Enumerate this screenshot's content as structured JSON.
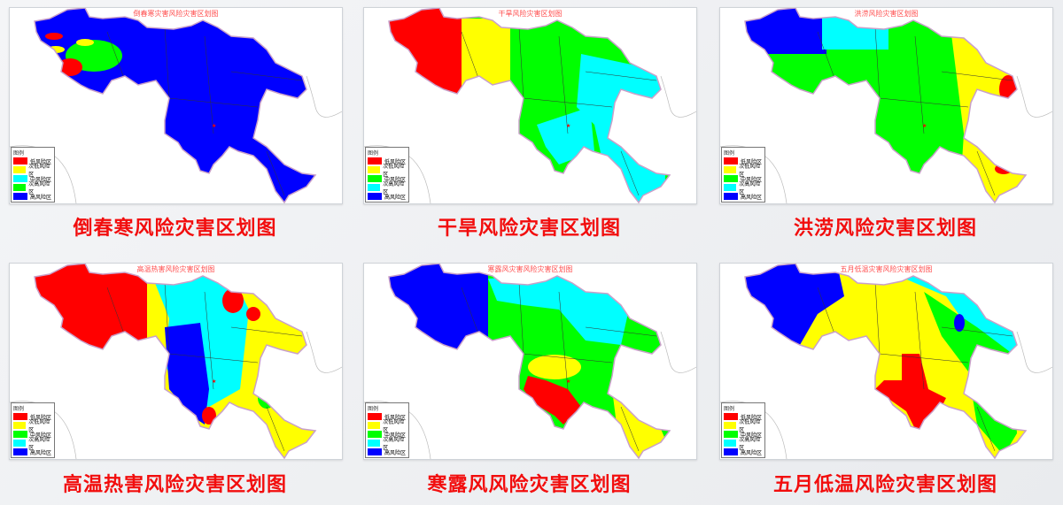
{
  "colors": {
    "red": "#ff0000",
    "yellow": "#ffff00",
    "cyan": "#00ffff",
    "green": "#00ff00",
    "blue": "#0000ff"
  },
  "legend_title": "图例",
  "panels": [
    {
      "map_title": "倒春寒灾害风险灾害区划图",
      "caption": "倒春寒风险灾害区划图",
      "legend": [
        {
          "label": "低风险区",
          "color": "#ff0000"
        },
        {
          "label": "次低风险区",
          "color": "#ffff00"
        },
        {
          "label": "中风险区",
          "color": "#00ffff"
        },
        {
          "label": "次高风险区",
          "color": "#00ff00"
        },
        {
          "label": "高风险区",
          "color": "#0000ff"
        }
      ]
    },
    {
      "map_title": "干旱风险灾害区划图",
      "caption": "干旱风险灾害区划图",
      "legend": [
        {
          "label": "低风险区",
          "color": "#ff0000"
        },
        {
          "label": "次低风险区",
          "color": "#ffff00"
        },
        {
          "label": "中风险区",
          "color": "#00ff00"
        },
        {
          "label": "次高风险区",
          "color": "#00ffff"
        },
        {
          "label": "高风险区",
          "color": "#0000ff"
        }
      ]
    },
    {
      "map_title": "洪涝风险灾害区划图",
      "caption": "洪涝风险灾害区划图",
      "legend": [
        {
          "label": "低风险区",
          "color": "#ff0000"
        },
        {
          "label": "次低风险区",
          "color": "#ffff00"
        },
        {
          "label": "中风险区",
          "color": "#00ff00"
        },
        {
          "label": "次高风险区",
          "color": "#00ffff"
        },
        {
          "label": "高风险区",
          "color": "#0000ff"
        }
      ]
    },
    {
      "map_title": "高温热害风险灾害区划图",
      "caption": "高温热害风险灾害区划图",
      "legend": [
        {
          "label": "低风险区",
          "color": "#ff0000"
        },
        {
          "label": "次低风险区",
          "color": "#ffff00"
        },
        {
          "label": "中风险区",
          "color": "#00ff00"
        },
        {
          "label": "次高风险区",
          "color": "#00ffff"
        },
        {
          "label": "高风险区",
          "color": "#0000ff"
        }
      ]
    },
    {
      "map_title": "寒露风灾害风险灾害区划图",
      "caption": "寒露风风险灾害区划图",
      "legend": [
        {
          "label": "低风险区",
          "color": "#ff0000"
        },
        {
          "label": "次低风险区",
          "color": "#ffff00"
        },
        {
          "label": "中风险区",
          "color": "#00ff00"
        },
        {
          "label": "次高风险区",
          "color": "#00ffff"
        },
        {
          "label": "高风险区",
          "color": "#0000ff"
        }
      ]
    },
    {
      "map_title": "五月低温灾害风险灾害区划图",
      "caption": "五月低温风险灾害区划图",
      "legend": [
        {
          "label": "低风险区",
          "color": "#ff0000"
        },
        {
          "label": "次低风险区",
          "color": "#ffff00"
        },
        {
          "label": "中风险区",
          "color": "#00ff00"
        },
        {
          "label": "次高风险区",
          "color": "#00ffff"
        },
        {
          "label": "高风险区",
          "color": "#0000ff"
        }
      ]
    }
  ]
}
